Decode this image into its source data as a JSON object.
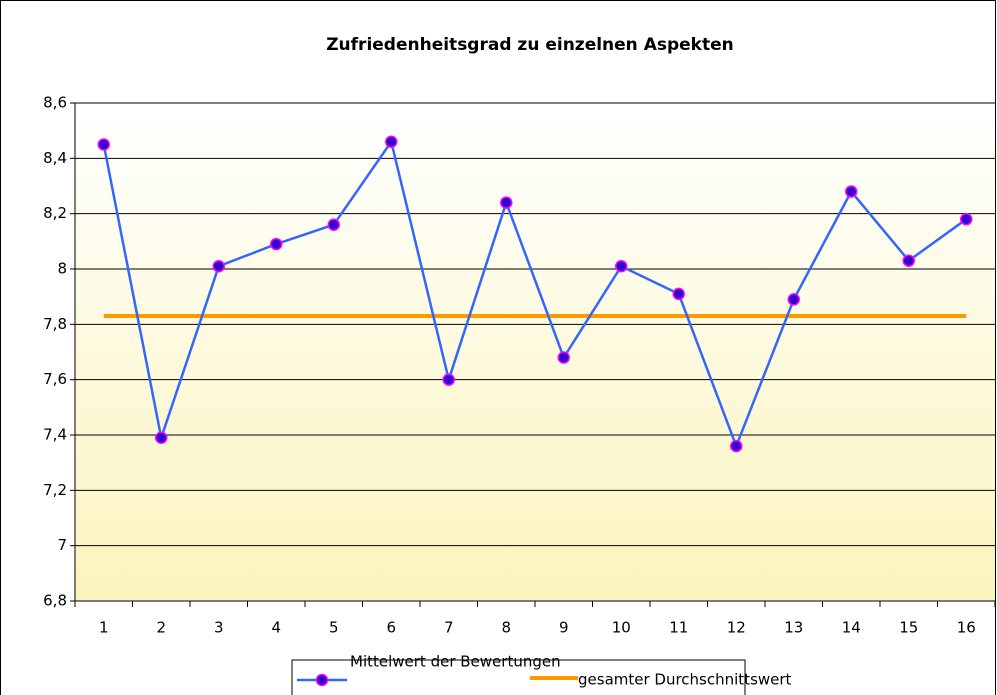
{
  "chart_data": {
    "type": "line",
    "title": "Zufriedenheitsgrad zu einzelnen Aspekten",
    "categories": [
      "1",
      "2",
      "3",
      "4",
      "5",
      "6",
      "7",
      "8",
      "9",
      "10",
      "11",
      "12",
      "13",
      "14",
      "15",
      "16"
    ],
    "series": [
      {
        "name": "Mittelwert der Bewertungen",
        "color": "#3366ff",
        "marker_color": "#3300cc",
        "marker_edge": "#ff00ff",
        "values": [
          8.45,
          7.39,
          8.01,
          8.09,
          8.16,
          8.46,
          7.6,
          8.24,
          7.68,
          8.01,
          7.91,
          7.36,
          7.89,
          8.28,
          8.03,
          8.18
        ]
      },
      {
        "name": "gesamter Durchschnittswert",
        "color": "#ff9900",
        "values": [
          7.83,
          7.83,
          7.83,
          7.83,
          7.83,
          7.83,
          7.83,
          7.83,
          7.83,
          7.83,
          7.83,
          7.83,
          7.83,
          7.83,
          7.83,
          7.83
        ]
      }
    ],
    "ylim": [
      6.8,
      8.6
    ],
    "yticks": [
      {
        "value": 6.8,
        "label": "6,8"
      },
      7,
      {
        "value": 7.2,
        "label": "7,2"
      },
      {
        "value": 7.4,
        "label": "7,4"
      },
      {
        "value": 7.6,
        "label": "7,6"
      },
      {
        "value": 7.8,
        "label": "7,8"
      },
      8,
      {
        "value": 8.2,
        "label": "8,2"
      },
      {
        "value": 8.4,
        "label": "8,4"
      },
      {
        "value": 8.6,
        "label": "8,6"
      }
    ],
    "grid": true,
    "legend": "bottom"
  }
}
